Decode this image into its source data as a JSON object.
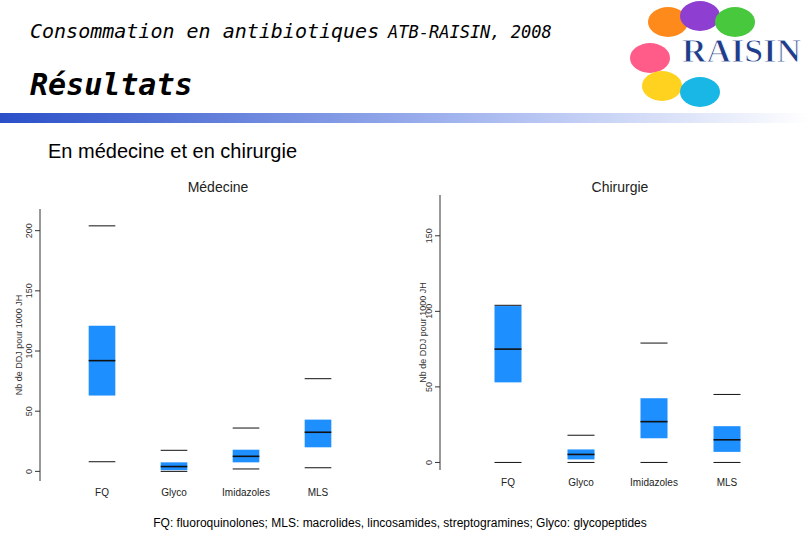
{
  "page": {
    "title": "Consommation en antibiotiques",
    "title_suffix": "ATB-RAISIN, 2008",
    "heading": "Résultats",
    "subheading": "En médecine et en chirurgie",
    "logo": "RAISIN",
    "footnote": "FQ: fluoroquinolones; MLS: macrolides, lincosamides, streptogramines; Glyco: glycopeptides"
  },
  "chart_data": [
    {
      "type": "box",
      "title": "Médecine",
      "y_label": "Nb de DDJ pour 1000 JH",
      "categories": [
        "FQ",
        "Glyco",
        "Imidazoles",
        "MLS"
      ],
      "min": [
        8,
        0,
        2,
        3
      ],
      "q1": [
        63,
        1,
        7.5,
        20
      ],
      "median": [
        92,
        4,
        12.5,
        32.5
      ],
      "q3": [
        121,
        7.5,
        18,
        43
      ],
      "max": [
        204,
        17.5,
        36,
        77
      ],
      "color": "#1e8fff",
      "ylim": [
        -8,
        218
      ],
      "yticks": [
        0,
        50,
        100,
        150,
        200
      ]
    },
    {
      "type": "box",
      "title": "Chirurgie",
      "y_label": "Nb de DDJ pour 1000 JH",
      "categories": [
        "FQ",
        "Glyco",
        "Imidazoles",
        "MLS"
      ],
      "min": [
        0,
        0,
        0,
        0
      ],
      "q1": [
        53,
        2,
        16,
        7
      ],
      "median": [
        75,
        5.3,
        27,
        15
      ],
      "q3": [
        103.5,
        8.6,
        42.5,
        24
      ],
      "max": [
        104,
        18,
        79,
        45
      ],
      "color": "#1e8fff",
      "ylim": [
        -5,
        177
      ],
      "yticks": [
        0,
        50,
        100,
        150
      ]
    }
  ]
}
